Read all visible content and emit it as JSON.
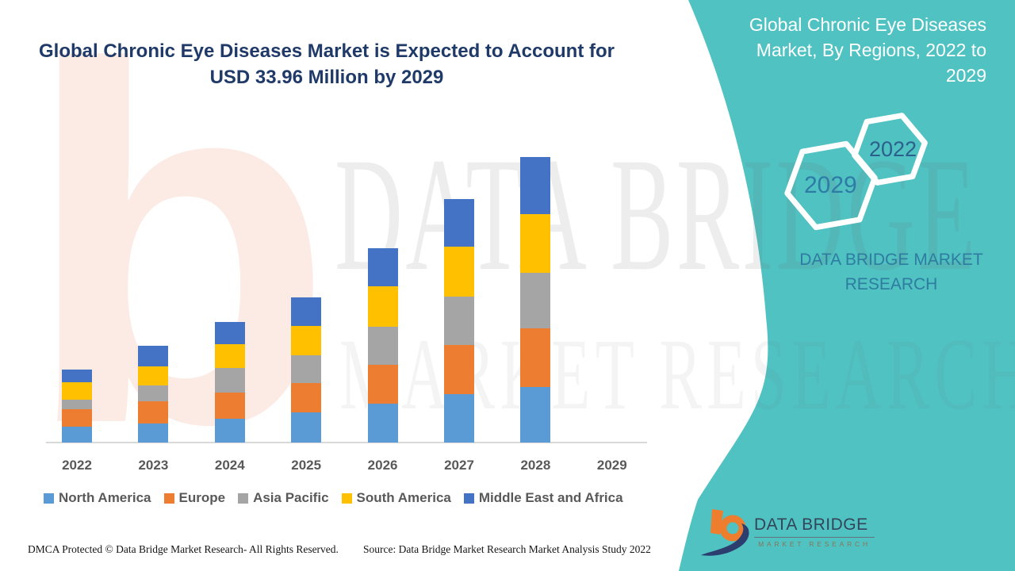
{
  "header": {
    "title_line1": "Global Chronic Eye Diseases Market is Expected to Account for",
    "title_line2": "USD 33.96 Million by 2029",
    "title_color": "#1f3a68"
  },
  "side_panel": {
    "bg_color": "#50c2c2",
    "title_lines": [
      "Global Chronic Eye Diseases",
      "Market, By Regions, 2022 to",
      "2029"
    ],
    "hexagons": [
      {
        "label": "2029",
        "text_color": "#2e7ca6"
      },
      {
        "label": "2022",
        "text_color": "#2c608c"
      }
    ],
    "brand_line1": "DATA BRIDGE MARKET",
    "brand_line2": "RESEARCH",
    "brand_color": "#2e7ca0"
  },
  "watermark": {
    "letter": "b",
    "line1": "DATA BRIDGE",
    "line2": "MARKET RESEARCH"
  },
  "chart_data": {
    "type": "bar",
    "stacked": true,
    "title": "Global Chronic Eye Diseases Market, By Regions, 2022 to 2029",
    "xlabel": "",
    "ylabel": "",
    "y_axis": "hidden (no value axis shown)",
    "gridlines": false,
    "legend_position": "bottom",
    "values_unit": "relative stacked-segment heights estimated from pixels (no numeric axis in source)",
    "categories": [
      "2022",
      "2023",
      "2024",
      "2025",
      "2026",
      "2027",
      "2028",
      "2029"
    ],
    "series": [
      {
        "name": "North America",
        "color": "#5b9bd5",
        "values": [
          20,
          24,
          30,
          38,
          49,
          61,
          70,
          0
        ]
      },
      {
        "name": "Europe",
        "color": "#ed7d31",
        "values": [
          22,
          28,
          33,
          37,
          49,
          62,
          74,
          0
        ]
      },
      {
        "name": "Asia Pacific",
        "color": "#a5a5a5",
        "values": [
          12,
          20,
          31,
          35,
          48,
          61,
          70,
          0
        ]
      },
      {
        "name": "South America",
        "color": "#ffc000",
        "values": [
          22,
          24,
          30,
          37,
          51,
          63,
          74,
          0
        ]
      },
      {
        "name": "Middle East and Africa",
        "color": "#4472c4",
        "values": [
          16,
          26,
          28,
          36,
          48,
          60,
          72,
          0
        ]
      }
    ],
    "baseline_color": "#d9d9d9",
    "x_tick_color": "#595959"
  },
  "footer": {
    "left": "DMCA Protected © Data Bridge Market Research- All Rights Reserved.",
    "source": "Source: Data Bridge Market Research Market Analysis Study 2022"
  },
  "logo": {
    "name": "DATA BRIDGE",
    "subtitle": "MARKET RESEARCH"
  }
}
